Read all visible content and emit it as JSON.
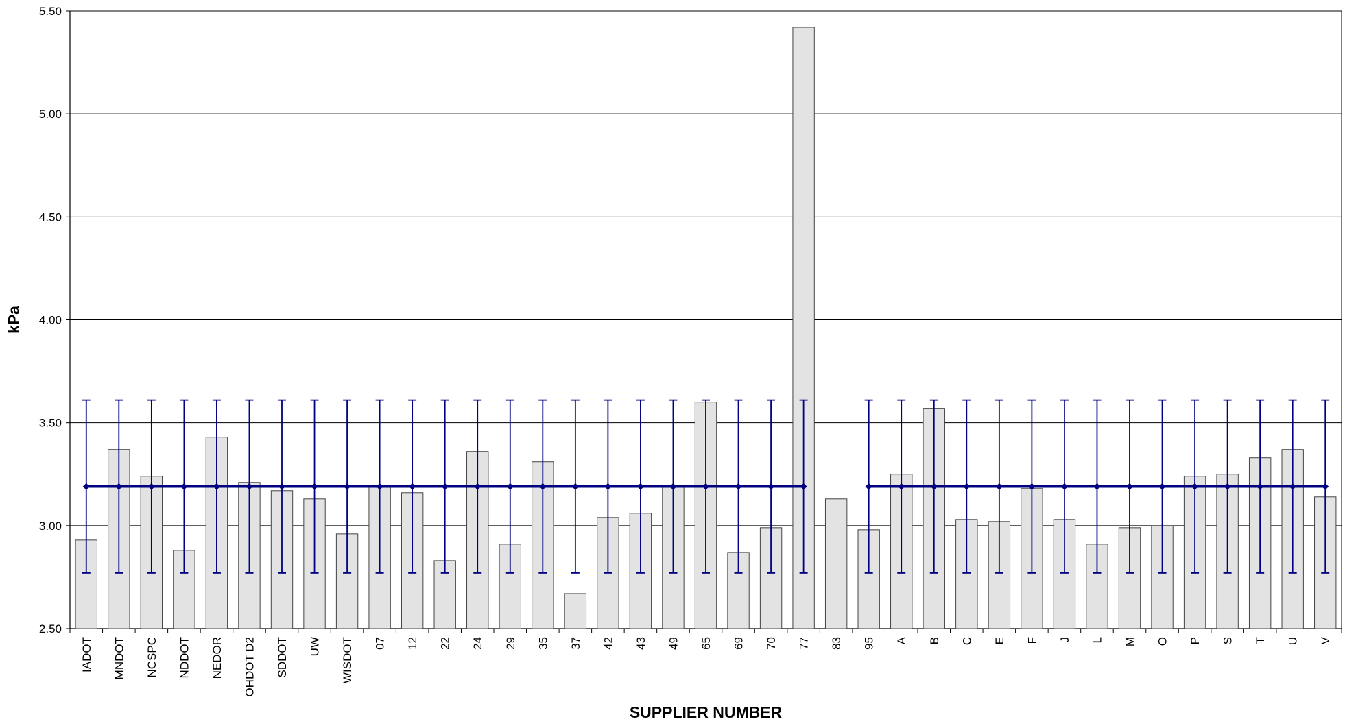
{
  "chart_data": {
    "type": "bar",
    "title": "",
    "xlabel": "SUPPLIER NUMBER",
    "ylabel": "kPa",
    "ylim": [
      2.5,
      5.5
    ],
    "yticks": [
      "2.50",
      "3.00",
      "3.50",
      "4.00",
      "4.50",
      "5.00",
      "5.50"
    ],
    "grid": true,
    "colors": {
      "bar_fill": "#e3e3e3",
      "bar_stroke": "#444444",
      "mean_line": "#000080",
      "grid": "#000000"
    },
    "categories": [
      "IADOT",
      "MNDOT",
      "NCSPC",
      "NDDOT",
      "NEDOR",
      "OHDOT D2",
      "SDDOT",
      "UW",
      "WISDOT",
      "07",
      "12",
      "22",
      "24",
      "29",
      "35",
      "37",
      "42",
      "43",
      "49",
      "65",
      "69",
      "70",
      "77",
      "83",
      "95",
      "A",
      "B",
      "C",
      "E",
      "F",
      "J",
      "L",
      "M",
      "O",
      "P",
      "S",
      "T",
      "U",
      "V"
    ],
    "values": [
      2.93,
      3.37,
      3.24,
      2.88,
      3.43,
      3.21,
      3.17,
      3.13,
      2.96,
      3.19,
      3.16,
      2.83,
      3.36,
      2.91,
      3.31,
      2.67,
      3.04,
      3.06,
      3.19,
      3.6,
      2.87,
      2.99,
      5.42,
      3.13,
      2.98,
      3.25,
      3.57,
      3.03,
      3.02,
      3.18,
      3.03,
      2.91,
      2.99,
      3.0,
      3.24,
      3.25,
      3.33,
      3.37,
      3.14
    ],
    "mean_line": {
      "value": 3.19,
      "upper": 3.61,
      "lower": 2.77,
      "missing_categories": [
        "83"
      ]
    }
  }
}
